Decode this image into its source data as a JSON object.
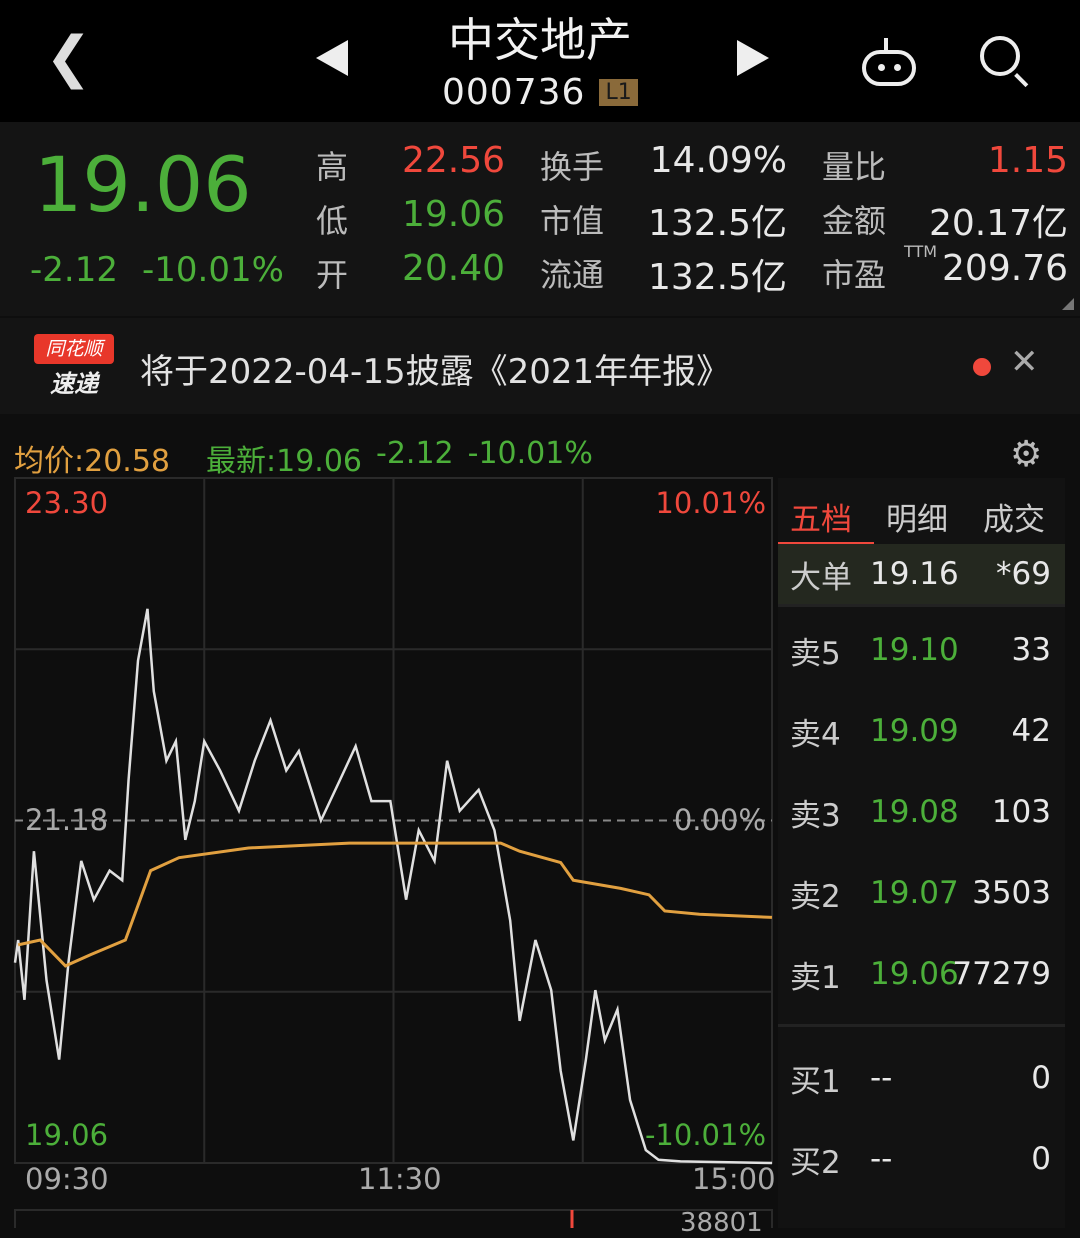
{
  "header": {
    "name": "中交地产",
    "code": "000736",
    "level": "L1"
  },
  "quote": {
    "price": "19.06",
    "change": "-2.12",
    "change_pct": "-10.01%"
  },
  "stats": [
    {
      "label": "高",
      "value": "22.56",
      "color": "red"
    },
    {
      "label": "低",
      "value": "19.06",
      "color": "green"
    },
    {
      "label": "开",
      "value": "20.40",
      "color": "green"
    },
    {
      "label": "换手",
      "value": "14.09%",
      "color": "white"
    },
    {
      "label": "市值",
      "value": "132.5亿",
      "color": "white"
    },
    {
      "label": "流通",
      "value": "132.5亿",
      "color": "white"
    },
    {
      "label": "量比",
      "value": "1.15",
      "color": "red"
    },
    {
      "label": "金额",
      "value": "20.17亿",
      "color": "white"
    },
    {
      "label": "市盈",
      "sup": "TTM",
      "value": "209.76",
      "color": "white"
    }
  ],
  "banner": {
    "logo_top": "同花顺",
    "logo_bottom": "速递",
    "text": "将于2022-04-15披露《2021年年报》"
  },
  "chart_info": {
    "avg_label": "均价:20.58",
    "latest_label": "最新:19.06",
    "change": "-2.12",
    "change_pct": "-10.01%"
  },
  "chart_data": {
    "type": "line",
    "y_labels": {
      "top": "23.30",
      "mid": "21.18",
      "bottom": "19.06",
      "top_pct": "10.01%",
      "mid_pct": "0.00%",
      "bottom_pct": "-10.01%"
    },
    "ylim": [
      19.06,
      23.3
    ],
    "x_labels": [
      "09:30",
      "11:30",
      "15:00"
    ],
    "series": [
      {
        "kind": "price",
        "color": "#e0e0e0",
        "points": [
          [
            "09:30",
            20.3
          ],
          [
            "09:31",
            20.44
          ],
          [
            "09:33",
            20.07
          ],
          [
            "09:36",
            20.99
          ],
          [
            "09:40",
            20.19
          ],
          [
            "09:44",
            19.7
          ],
          [
            "09:47",
            20.31
          ],
          [
            "09:51",
            20.93
          ],
          [
            "09:55",
            20.69
          ],
          [
            "10:00",
            20.87
          ],
          [
            "10:04",
            20.81
          ],
          [
            "10:06",
            21.43
          ],
          [
            "10:09",
            22.17
          ],
          [
            "10:12",
            22.49
          ],
          [
            "10:14",
            21.98
          ],
          [
            "10:18",
            21.55
          ],
          [
            "10:21",
            21.67
          ],
          [
            "10:24",
            21.06
          ],
          [
            "10:27",
            21.3
          ],
          [
            "10:30",
            21.67
          ],
          [
            "10:35",
            21.49
          ],
          [
            "10:41",
            21.24
          ],
          [
            "10:46",
            21.55
          ],
          [
            "10:51",
            21.8
          ],
          [
            "10:56",
            21.49
          ],
          [
            "11:00",
            21.61
          ],
          [
            "11:07",
            21.18
          ],
          [
            "11:13",
            21.43
          ],
          [
            "11:18",
            21.64
          ],
          [
            "11:23",
            21.3
          ],
          [
            "11:29",
            21.3
          ],
          [
            "13:04",
            20.69
          ],
          [
            "13:08",
            21.12
          ],
          [
            "13:13",
            20.93
          ],
          [
            "13:17",
            21.55
          ],
          [
            "13:21",
            21.24
          ],
          [
            "13:27",
            21.37
          ],
          [
            "13:32",
            21.12
          ],
          [
            "13:37",
            20.56
          ],
          [
            "13:40",
            19.94
          ],
          [
            "13:45",
            20.44
          ],
          [
            "13:50",
            20.13
          ],
          [
            "13:53",
            19.63
          ],
          [
            "13:57",
            19.2
          ],
          [
            "14:01",
            19.7
          ],
          [
            "14:04",
            20.13
          ],
          [
            "14:07",
            19.82
          ],
          [
            "14:11",
            20.01
          ],
          [
            "14:15",
            19.45
          ],
          [
            "14:20",
            19.14
          ],
          [
            "14:24",
            19.08
          ],
          [
            "14:31",
            19.07
          ],
          [
            "15:00",
            19.06
          ]
        ]
      },
      {
        "kind": "average",
        "color": "#e1a040",
        "points": [
          [
            "09:31",
            20.41
          ],
          [
            "09:38",
            20.44
          ],
          [
            "09:46",
            20.28
          ],
          [
            "09:54",
            20.35
          ],
          [
            "10:05",
            20.44
          ],
          [
            "10:13",
            20.87
          ],
          [
            "10:22",
            20.95
          ],
          [
            "10:44",
            21.01
          ],
          [
            "11:16",
            21.04
          ],
          [
            "13:18",
            21.04
          ],
          [
            "13:34",
            21.04
          ],
          [
            "13:40",
            20.99
          ],
          [
            "13:53",
            20.92
          ],
          [
            "13:57",
            20.81
          ],
          [
            "14:12",
            20.76
          ],
          [
            "14:21",
            20.72
          ],
          [
            "14:26",
            20.62
          ],
          [
            "14:37",
            20.6
          ],
          [
            "15:00",
            20.58
          ]
        ]
      }
    ],
    "grid": true,
    "volume_label": "38801"
  },
  "orderbook": {
    "tabs": [
      "五档",
      "明细",
      "成交"
    ],
    "big_order": {
      "label": "大单",
      "price": "19.16",
      "qty": "*69"
    },
    "asks": [
      {
        "label": "卖5",
        "price": "19.10",
        "qty": "33"
      },
      {
        "label": "卖4",
        "price": "19.09",
        "qty": "42"
      },
      {
        "label": "卖3",
        "price": "19.08",
        "qty": "103"
      },
      {
        "label": "卖2",
        "price": "19.07",
        "qty": "3503"
      },
      {
        "label": "卖1",
        "price": "19.06",
        "qty": "77279"
      }
    ],
    "bids": [
      {
        "label": "买1",
        "price": "--",
        "qty": "0"
      },
      {
        "label": "买2",
        "price": "--",
        "qty": "0"
      }
    ]
  }
}
